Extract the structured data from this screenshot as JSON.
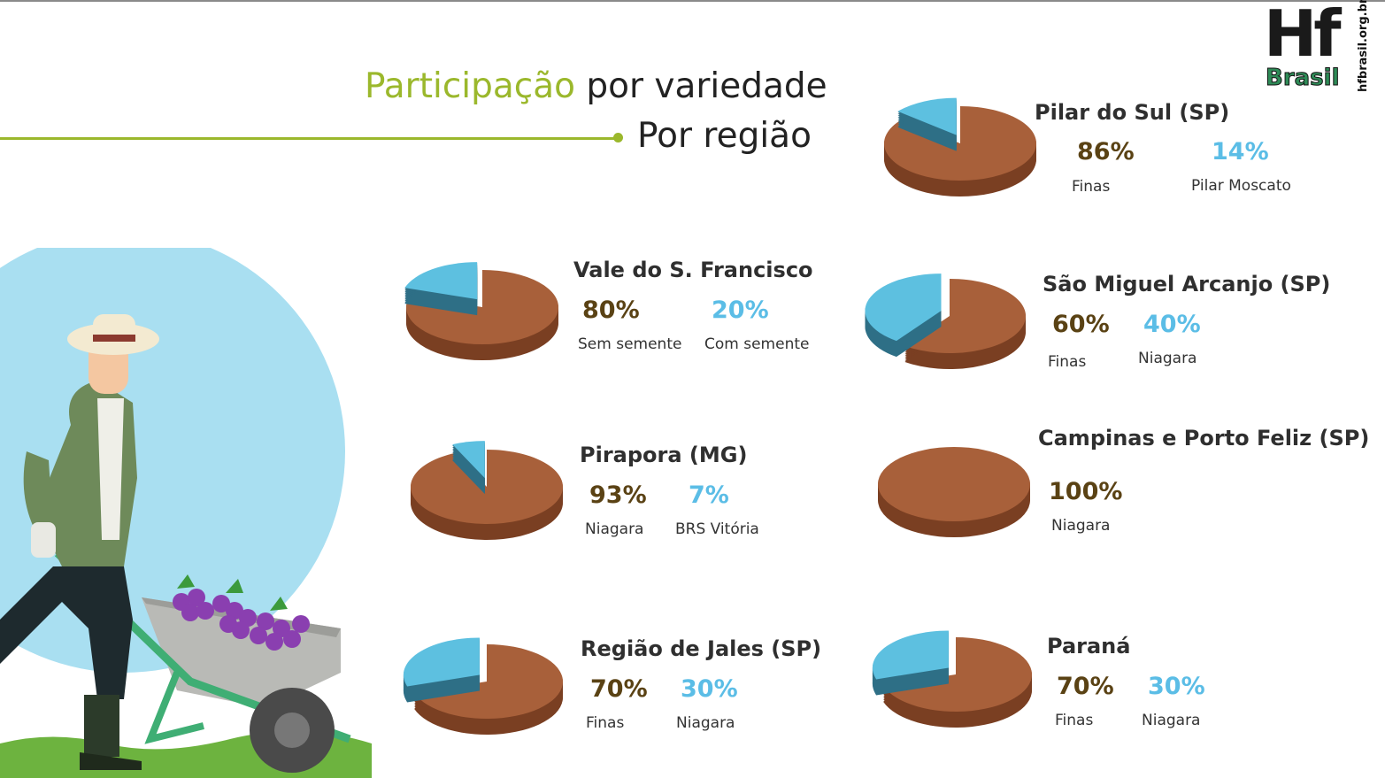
{
  "header": {
    "title_highlight": "Participação",
    "title_rest": " por variedade",
    "subtitle": "Por região"
  },
  "logo": {
    "main": "Hf",
    "sub": "Brasil",
    "url": "hfbrasil.org.br"
  },
  "colors": {
    "primary_slice": "#a8603a",
    "secondary_slice": "#5dc0e0",
    "accent": "#9bb82c"
  },
  "chart_data": [
    {
      "type": "pie",
      "title": "Pilar do Sul (SP)",
      "categories": [
        "Finas",
        "Pilar Moscato"
      ],
      "values": [
        86,
        14
      ],
      "labels": [
        "86%",
        "14%"
      ]
    },
    {
      "type": "pie",
      "title": "Vale do S. Francisco",
      "categories": [
        "Sem semente",
        "Com semente"
      ],
      "values": [
        80,
        20
      ],
      "labels": [
        "80%",
        "20%"
      ]
    },
    {
      "type": "pie",
      "title": "São Miguel Arcanjo (SP)",
      "categories": [
        "Finas",
        "Niagara"
      ],
      "values": [
        60,
        40
      ],
      "labels": [
        "60%",
        "40%"
      ]
    },
    {
      "type": "pie",
      "title": "Pirapora (MG)",
      "categories": [
        "Niagara",
        "BRS Vitória"
      ],
      "values": [
        93,
        7
      ],
      "labels": [
        "93%",
        "7%"
      ]
    },
    {
      "type": "pie",
      "title": "Campinas e Porto Feliz (SP)",
      "categories": [
        "Niagara"
      ],
      "values": [
        100
      ],
      "labels": [
        "100%"
      ]
    },
    {
      "type": "pie",
      "title": "Região de Jales (SP)",
      "categories": [
        "Finas",
        "Niagara"
      ],
      "values": [
        70,
        30
      ],
      "labels": [
        "70%",
        "30%"
      ]
    },
    {
      "type": "pie",
      "title": "Paraná",
      "categories": [
        "Finas",
        "Niagara"
      ],
      "values": [
        70,
        30
      ],
      "labels": [
        "70%",
        "30%"
      ]
    }
  ]
}
